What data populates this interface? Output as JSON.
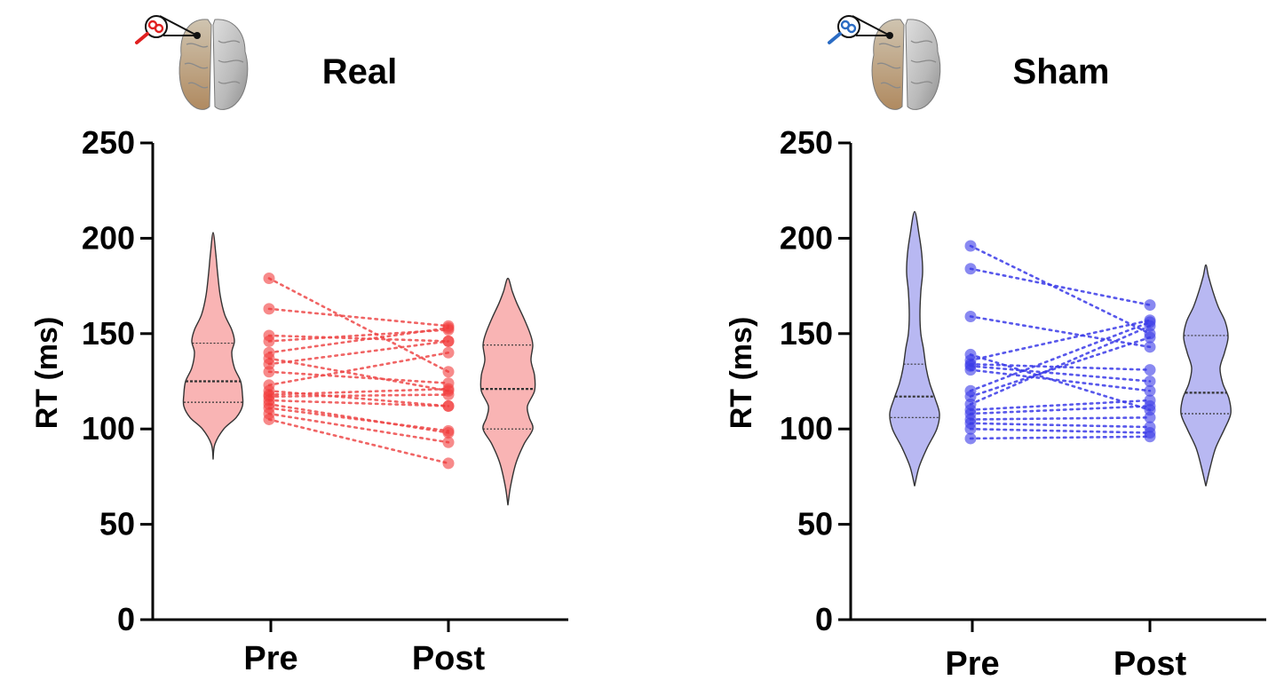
{
  "chart_data": [
    {
      "type": "violin",
      "title": "Real",
      "ylabel": "RT (ms)",
      "ylim": [
        0,
        250
      ],
      "yticks": [
        0,
        50,
        100,
        150,
        200,
        250
      ],
      "categories": [
        "Pre",
        "Post"
      ],
      "colors": {
        "fill": "#f9b4b4",
        "stroke": "#333333",
        "point": "#f23c3c",
        "pair_line": "#ee4a4a",
        "stim_icon": "#e02020"
      },
      "violins": [
        {
          "category": "Pre",
          "min": 84,
          "max": 203,
          "q1": 114,
          "median": 125,
          "q3": 145,
          "density": [
            [
              84,
              0
            ],
            [
              92,
              2
            ],
            [
              100,
              12
            ],
            [
              106,
              26
            ],
            [
              112,
              33
            ],
            [
              118,
              33
            ],
            [
              125,
              31
            ],
            [
              132,
              24
            ],
            [
              140,
              21
            ],
            [
              146,
              24
            ],
            [
              152,
              21
            ],
            [
              160,
              13
            ],
            [
              170,
              8
            ],
            [
              182,
              5
            ],
            [
              192,
              3
            ],
            [
              203,
              0
            ]
          ]
        },
        {
          "category": "Post",
          "min": 60,
          "max": 179,
          "q1": 100,
          "median": 121,
          "q3": 144,
          "density": [
            [
              60,
              0
            ],
            [
              70,
              3
            ],
            [
              82,
              9
            ],
            [
              92,
              18
            ],
            [
              100,
              28
            ],
            [
              106,
              24
            ],
            [
              112,
              22
            ],
            [
              120,
              30
            ],
            [
              128,
              30
            ],
            [
              136,
              26
            ],
            [
              144,
              28
            ],
            [
              150,
              25
            ],
            [
              158,
              18
            ],
            [
              166,
              10
            ],
            [
              172,
              5
            ],
            [
              179,
              0
            ]
          ]
        }
      ],
      "paired": [
        [
          179,
          130
        ],
        [
          163,
          154
        ],
        [
          149,
          146
        ],
        [
          146,
          152
        ],
        [
          140,
          153
        ],
        [
          137,
          120
        ],
        [
          134,
          146
        ],
        [
          130,
          124
        ],
        [
          123,
          140
        ],
        [
          120,
          112
        ],
        [
          118,
          121
        ],
        [
          117,
          118
        ],
        [
          115,
          112
        ],
        [
          113,
          98
        ],
        [
          111,
          99
        ],
        [
          108,
          93
        ],
        [
          105,
          82
        ]
      ]
    },
    {
      "type": "violin",
      "title": "Sham",
      "ylabel": "RT (ms)",
      "ylim": [
        0,
        250
      ],
      "yticks": [
        0,
        50,
        100,
        150,
        200,
        250
      ],
      "categories": [
        "Pre",
        "Post"
      ],
      "colors": {
        "fill": "#b8b8f2",
        "stroke": "#333333",
        "point": "#3a3ae8",
        "pair_line": "#3a3ae8",
        "stim_icon": "#2b6cc4"
      },
      "violins": [
        {
          "category": "Pre",
          "min": 70,
          "max": 214,
          "q1": 106,
          "median": 117,
          "q3": 134,
          "density": [
            [
              70,
              0
            ],
            [
              80,
              5
            ],
            [
              90,
              14
            ],
            [
              100,
              25
            ],
            [
              108,
              28
            ],
            [
              116,
              23
            ],
            [
              124,
              17
            ],
            [
              132,
              13
            ],
            [
              142,
              10
            ],
            [
              150,
              7
            ],
            [
              160,
              6
            ],
            [
              172,
              7
            ],
            [
              182,
              9
            ],
            [
              192,
              8
            ],
            [
              202,
              5
            ],
            [
              214,
              0
            ]
          ]
        },
        {
          "category": "Post",
          "min": 70,
          "max": 186,
          "q1": 108,
          "median": 119,
          "q3": 149,
          "density": [
            [
              70,
              0
            ],
            [
              80,
              5
            ],
            [
              90,
              11
            ],
            [
              100,
              21
            ],
            [
              108,
              28
            ],
            [
              116,
              26
            ],
            [
              124,
              19
            ],
            [
              132,
              16
            ],
            [
              140,
              21
            ],
            [
              148,
              25
            ],
            [
              156,
              22
            ],
            [
              164,
              14
            ],
            [
              172,
              8
            ],
            [
              180,
              3
            ],
            [
              186,
              0
            ]
          ]
        }
      ],
      "paired": [
        [
          196,
          150
        ],
        [
          184,
          165
        ],
        [
          159,
          143
        ],
        [
          139,
          110
        ],
        [
          136,
          157
        ],
        [
          134,
          131
        ],
        [
          133,
          125
        ],
        [
          131,
          120
        ],
        [
          120,
          156
        ],
        [
          117,
          148
        ],
        [
          113,
          154
        ],
        [
          110,
          115
        ],
        [
          108,
          112
        ],
        [
          105,
          106
        ],
        [
          103,
          101
        ],
        [
          100,
          98
        ],
        [
          95,
          96
        ]
      ]
    }
  ]
}
